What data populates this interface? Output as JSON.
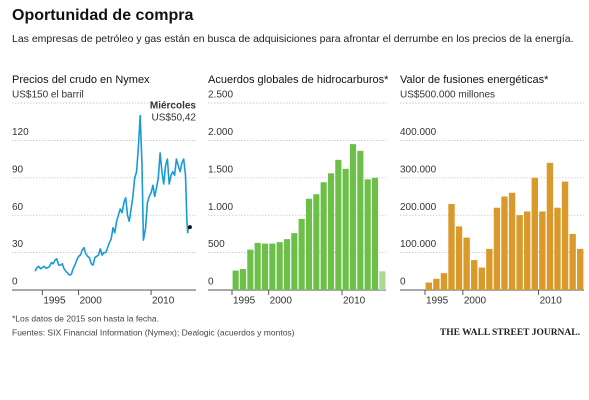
{
  "title": "Oportunidad de compra",
  "subtitle": "Las empresas de petróleo y gas están en busca de adquisiciones para afrontar el derrumbe en los precios de la energía.",
  "footnote": "*Los datos de 2015 son hasta la fecha.",
  "source": "Fuentes: SIX Financial Information (Nymex); Dealogic (acuerdos y montos)",
  "publisher": "THE WALL STREET JOURNAL.",
  "chart_data": [
    {
      "type": "line",
      "title": "Precios del crudo en Nymex",
      "color": "#1a9bd7",
      "x": [
        1994,
        1994.25,
        1994.5,
        1994.75,
        1995,
        1995.25,
        1995.5,
        1995.75,
        1996,
        1996.25,
        1996.5,
        1996.75,
        1997,
        1997.25,
        1997.5,
        1997.75,
        1998,
        1998.25,
        1998.5,
        1998.75,
        1999,
        1999.25,
        1999.5,
        1999.75,
        2000,
        2000.25,
        2000.5,
        2000.75,
        2001,
        2001.25,
        2001.5,
        2001.75,
        2002,
        2002.25,
        2002.5,
        2002.75,
        2003,
        2003.25,
        2003.5,
        2003.75,
        2004,
        2004.25,
        2004.5,
        2004.75,
        2005,
        2005.25,
        2005.5,
        2005.75,
        2006,
        2006.25,
        2006.5,
        2006.75,
        2007,
        2007.25,
        2007.5,
        2007.75,
        2008,
        2008.25,
        2008.5,
        2008.75,
        2008.95,
        2009.25,
        2009.5,
        2009.75,
        2010,
        2010.25,
        2010.5,
        2010.75,
        2011,
        2011.25,
        2011.5,
        2011.75,
        2012,
        2012.25,
        2012.5,
        2012.75,
        2013,
        2013.25,
        2013.5,
        2013.75,
        2014,
        2014.25,
        2014.5,
        2014.75,
        2014.95,
        2015.05,
        2015.15
      ],
      "values": [
        15,
        18,
        19,
        17,
        18,
        19,
        17.5,
        18,
        19,
        22,
        21,
        24,
        25,
        20,
        20,
        21,
        17,
        15,
        13.5,
        12,
        12.5,
        17,
        20,
        24,
        27,
        28,
        32,
        34,
        29,
        27,
        26,
        21,
        20,
        26,
        27,
        28,
        33,
        28,
        30,
        30,
        34,
        38,
        41,
        50,
        46,
        55,
        60,
        65,
        62,
        70,
        74,
        60,
        55,
        65,
        75,
        90,
        95,
        115,
        140,
        100,
        40,
        50,
        70,
        75,
        78,
        84,
        75,
        82,
        90,
        110,
        95,
        85,
        100,
        105,
        85,
        92,
        95,
        92,
        105,
        100,
        95,
        102,
        105,
        92,
        55,
        46,
        50.42
      ],
      "xlim": [
        1993.3,
        2016.2
      ],
      "xticks": [
        1995,
        2000,
        2010
      ],
      "ylim": [
        0,
        150
      ],
      "yticks": [
        0,
        30,
        60,
        90,
        120,
        {
          "value": 150,
          "label": "US$150 el barril"
        }
      ],
      "grid": true,
      "annotations": [
        "Miércoles",
        "US$50,42"
      ]
    },
    {
      "type": "bar",
      "title": "Acuerdos globales de hidrocarburos*",
      "categories": [
        "1995",
        null,
        null,
        null,
        null,
        "2000",
        null,
        null,
        null,
        null,
        null,
        null,
        null,
        null,
        null,
        "2010",
        null,
        null,
        null,
        null,
        null
      ],
      "values": [
        260,
        280,
        540,
        630,
        620,
        620,
        640,
        680,
        760,
        950,
        1220,
        1280,
        1440,
        1560,
        1740,
        1620,
        1950,
        1860,
        1480,
        1500,
        250
      ],
      "colors": [
        "#6cbf47",
        "#6cbf47",
        "#6cbf47",
        "#6cbf47",
        "#6cbf47",
        "#6cbf47",
        "#6cbf47",
        "#6cbf47",
        "#6cbf47",
        "#6cbf47",
        "#6cbf47",
        "#6cbf47",
        "#6cbf47",
        "#6cbf47",
        "#6cbf47",
        "#6cbf47",
        "#6cbf47",
        "#6cbf47",
        "#6cbf47",
        "#6cbf47",
        "#acd991"
      ],
      "ylim": [
        0,
        2500
      ],
      "yticks": [
        0,
        500,
        {
          "value": 1000,
          "label": "1.000"
        },
        {
          "value": 1500,
          "label": "1.500"
        },
        {
          "value": 2000,
          "label": "2.000"
        },
        {
          "value": 2500,
          "label": "2.500"
        }
      ],
      "grid": true
    },
    {
      "type": "bar",
      "title": "Valor de fusiones energéticas*",
      "categories": [
        "1995",
        null,
        null,
        null,
        null,
        "2000",
        null,
        null,
        null,
        null,
        null,
        null,
        null,
        null,
        null,
        "2010",
        null,
        null,
        null,
        null,
        null
      ],
      "values": [
        20000,
        30000,
        45000,
        230000,
        170000,
        140000,
        80000,
        60000,
        110000,
        220000,
        250000,
        260000,
        200000,
        210000,
        300000,
        210000,
        340000,
        220000,
        290000,
        150000,
        110000
      ],
      "color": "#d99a2b",
      "ylim": [
        0,
        500000
      ],
      "yticks": [
        0,
        {
          "value": 100000,
          "label": "100.000"
        },
        {
          "value": 200000,
          "label": "200.000"
        },
        {
          "value": 300000,
          "label": "300.000"
        },
        {
          "value": 400000,
          "label": "400.000"
        },
        {
          "value": 500000,
          "label": "US$500.000 millones"
        }
      ],
      "grid": true
    }
  ]
}
